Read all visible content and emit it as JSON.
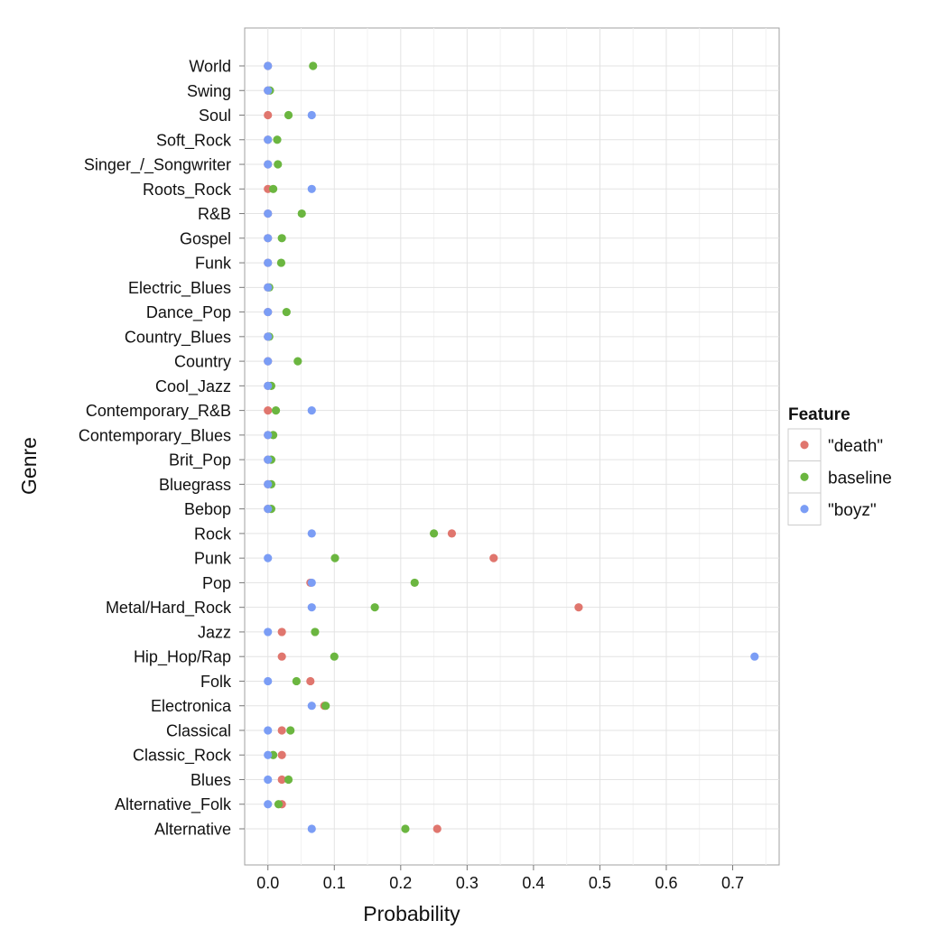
{
  "chart_data": {
    "type": "scatter",
    "title": "",
    "xlabel": "Probability",
    "ylabel": "Genre",
    "xlim": [
      -0.035,
      0.77
    ],
    "xticks": [
      0.0,
      0.1,
      0.2,
      0.3,
      0.4,
      0.5,
      0.6,
      0.7
    ],
    "xtick_labels": [
      "0.0",
      "0.1",
      "0.2",
      "0.3",
      "0.4",
      "0.5",
      "0.6",
      "0.7"
    ],
    "grid": true,
    "categories": [
      "Alternative",
      "Alternative_Folk",
      "Blues",
      "Classic_Rock",
      "Classical",
      "Electronica",
      "Folk",
      "Hip_Hop/Rap",
      "Jazz",
      "Metal/Hard_Rock",
      "Pop",
      "Punk",
      "Rock",
      "Bebop",
      "Bluegrass",
      "Brit_Pop",
      "Contemporary_Blues",
      "Contemporary_R&B",
      "Cool_Jazz",
      "Country",
      "Country_Blues",
      "Dance_Pop",
      "Electric_Blues",
      "Funk",
      "Gospel",
      "R&B",
      "Roots_Rock",
      "Singer_/_Songwriter",
      "Soft_Rock",
      "Soul",
      "Swing",
      "World"
    ],
    "legend": {
      "title": "Feature",
      "position": "right"
    },
    "series": [
      {
        "name": "\"death\"",
        "color": "#E0766E",
        "values": [
          0.255,
          0.021,
          0.021,
          0.021,
          0.021,
          0.085,
          0.064,
          0.021,
          0.021,
          0.468,
          0.064,
          0.34,
          0.277,
          0.0,
          0.0,
          0.0,
          0.0,
          0.0,
          0.0,
          0.0,
          0.0,
          0.0,
          0.0,
          0.0,
          0.0,
          0.0,
          0.0,
          0.0,
          0.0,
          0.0,
          0.0,
          0.0
        ]
      },
      {
        "name": "baseline",
        "color": "#6BB640",
        "values": [
          0.207,
          0.016,
          0.031,
          0.008,
          0.034,
          0.087,
          0.043,
          0.1,
          0.071,
          0.161,
          0.221,
          0.101,
          0.25,
          0.005,
          0.005,
          0.005,
          0.008,
          0.012,
          0.005,
          0.045,
          0.002,
          0.028,
          0.002,
          0.02,
          0.021,
          0.051,
          0.008,
          0.015,
          0.014,
          0.031,
          0.003,
          0.068
        ]
      },
      {
        "name": "\"boyz\"",
        "color": "#7B9DF5",
        "values": [
          0.066,
          0.0,
          0.0,
          0.0,
          0.0,
          0.066,
          0.0,
          0.733,
          0.0,
          0.066,
          0.066,
          0.0,
          0.066,
          0.0,
          0.0,
          0.0,
          0.0,
          0.066,
          0.0,
          0.0,
          0.0,
          0.0,
          0.0,
          0.0,
          0.0,
          0.0,
          0.066,
          0.0,
          0.0,
          0.066,
          0.0,
          0.0
        ]
      }
    ]
  }
}
